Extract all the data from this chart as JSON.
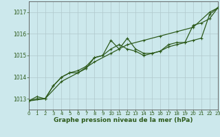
{
  "title": "Graphe pression niveau de la mer (hPa)",
  "bg_color": "#cce8ec",
  "grid_color": "#b0c8cc",
  "line_color": "#2d5a1b",
  "x_min": 0,
  "x_max": 23,
  "y_min": 1012.5,
  "y_max": 1017.5,
  "y_ticks": [
    1013,
    1014,
    1015,
    1016,
    1017
  ],
  "x_ticks": [
    0,
    1,
    2,
    3,
    4,
    5,
    6,
    7,
    8,
    9,
    10,
    11,
    12,
    13,
    14,
    15,
    16,
    17,
    18,
    19,
    20,
    21,
    22,
    23
  ],
  "series1": [
    [
      0,
      1012.9
    ],
    [
      1,
      1013.0
    ],
    [
      2,
      1013.0
    ],
    [
      3,
      1013.6
    ],
    [
      4,
      1014.0
    ],
    [
      5,
      1014.2
    ],
    [
      6,
      1014.3
    ],
    [
      7,
      1014.5
    ],
    [
      8,
      1014.9
    ],
    [
      9,
      1015.0
    ],
    [
      10,
      1015.7
    ],
    [
      11,
      1015.3
    ],
    [
      12,
      1015.8
    ],
    [
      13,
      1015.3
    ],
    [
      14,
      1015.1
    ],
    [
      15,
      1015.1
    ],
    [
      16,
      1015.2
    ],
    [
      17,
      1015.4
    ],
    [
      18,
      1015.5
    ],
    [
      19,
      1015.6
    ],
    [
      20,
      1015.7
    ],
    [
      21,
      1015.8
    ],
    [
      22,
      1016.9
    ],
    [
      23,
      1017.2
    ]
  ],
  "series2": [
    [
      0,
      1012.9
    ],
    [
      1,
      1013.1
    ],
    [
      2,
      1013.0
    ],
    [
      3,
      1013.6
    ],
    [
      4,
      1014.0
    ],
    [
      5,
      1014.2
    ],
    [
      6,
      1014.2
    ],
    [
      7,
      1014.4
    ],
    [
      8,
      1014.9
    ],
    [
      9,
      1015.0
    ],
    [
      10,
      1015.3
    ],
    [
      11,
      1015.5
    ],
    [
      12,
      1015.3
    ],
    [
      13,
      1015.2
    ],
    [
      14,
      1015.0
    ],
    [
      15,
      1015.1
    ],
    [
      16,
      1015.2
    ],
    [
      17,
      1015.5
    ],
    [
      18,
      1015.6
    ],
    [
      19,
      1015.6
    ],
    [
      20,
      1016.4
    ],
    [
      21,
      1016.5
    ],
    [
      22,
      1016.7
    ],
    [
      23,
      1017.2
    ]
  ],
  "series3": [
    [
      0,
      1012.9
    ],
    [
      2,
      1013.0
    ],
    [
      4,
      1013.8
    ],
    [
      6,
      1014.2
    ],
    [
      8,
      1014.7
    ],
    [
      10,
      1015.1
    ],
    [
      12,
      1015.5
    ],
    [
      14,
      1015.7
    ],
    [
      16,
      1015.9
    ],
    [
      18,
      1016.1
    ],
    [
      20,
      1016.3
    ],
    [
      22,
      1017.0
    ],
    [
      23,
      1017.2
    ]
  ]
}
